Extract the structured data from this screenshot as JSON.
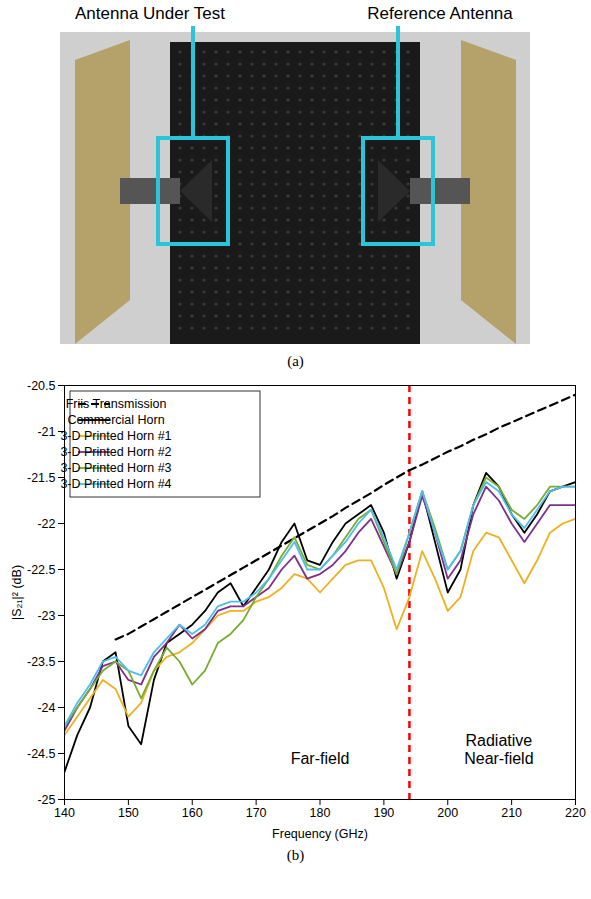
{
  "panel_a": {
    "labels": [
      "Antenna Under Test",
      "Reference Antenna"
    ],
    "caption": "(a)"
  },
  "chart_data": {
    "type": "line",
    "caption": "(b)",
    "x_label": "Frequency (GHz)",
    "y_label": "|S₂₁|² (dB)",
    "xlim": [
      140,
      220
    ],
    "xticks": [
      140,
      150,
      160,
      170,
      180,
      190,
      200,
      210,
      220
    ],
    "ylim": [
      -25,
      -20.5
    ],
    "yticks": [
      -25,
      -24.5,
      -24,
      -23.5,
      -23,
      -22.5,
      -22,
      -21.5,
      -21,
      -20.5
    ],
    "grid": false,
    "legend": "top-left",
    "vline": {
      "value": 194,
      "color": "#ff0000",
      "line_style": "dashed"
    },
    "annotations": [
      {
        "text": "Far-field",
        "x": 180,
        "y": -24.55
      },
      {
        "text": "Radiative Near-field",
        "x": 208,
        "y": -24.45
      }
    ],
    "x": [
      140,
      142,
      144,
      146,
      148,
      150,
      152,
      154,
      156,
      158,
      160,
      162,
      164,
      166,
      168,
      170,
      172,
      174,
      176,
      178,
      180,
      182,
      184,
      186,
      188,
      190,
      192,
      194,
      196,
      198,
      200,
      202,
      204,
      206,
      208,
      210,
      212,
      214,
      216,
      218,
      220
    ],
    "series": [
      {
        "name": "Friis Transmission",
        "color": "#000000",
        "line_style": "dashed",
        "values": [
          null,
          null,
          null,
          null,
          -23.26,
          -23.2,
          -23.12,
          -23.04,
          -22.96,
          -22.88,
          -22.8,
          -22.72,
          -22.64,
          -22.56,
          -22.48,
          -22.4,
          -22.32,
          -22.24,
          -22.16,
          -22.08,
          -22.0,
          -21.92,
          -21.83,
          -21.75,
          -21.67,
          -21.58,
          -21.5,
          -21.42,
          -21.36,
          -21.29,
          -21.22,
          -21.16,
          -21.09,
          -21.03,
          -20.96,
          -20.9,
          -20.84,
          -20.78,
          -20.72,
          -20.66,
          -20.6
        ]
      },
      {
        "name": "Commercial Horn",
        "color": "#000000",
        "line_style": "solid",
        "values": [
          -24.7,
          -24.3,
          -24.0,
          -23.5,
          -23.4,
          -24.2,
          -24.4,
          -23.7,
          -23.3,
          -23.2,
          -23.1,
          -22.95,
          -22.75,
          -22.65,
          -22.9,
          -22.7,
          -22.5,
          -22.2,
          -22.0,
          -22.4,
          -22.45,
          -22.2,
          -22.0,
          -21.9,
          -21.8,
          -22.1,
          -22.6,
          -22.2,
          -21.65,
          -22.2,
          -22.75,
          -22.5,
          -21.8,
          -21.45,
          -21.6,
          -21.9,
          -22.1,
          -21.9,
          -21.65,
          -21.6,
          -21.55
        ]
      },
      {
        "name": "3-D Printed Horn #1",
        "color": "#EDB120",
        "line_style": "solid",
        "values": [
          -24.3,
          -24.1,
          -23.9,
          -23.7,
          -23.8,
          -24.1,
          -23.95,
          -23.6,
          -23.45,
          -23.4,
          -23.3,
          -23.15,
          -23.0,
          -22.95,
          -22.95,
          -22.85,
          -22.8,
          -22.7,
          -22.55,
          -22.6,
          -22.75,
          -22.6,
          -22.45,
          -22.4,
          -22.4,
          -22.7,
          -23.15,
          -22.8,
          -22.3,
          -22.6,
          -22.95,
          -22.8,
          -22.3,
          -22.1,
          -22.15,
          -22.4,
          -22.65,
          -22.4,
          -22.1,
          -22.0,
          -21.95
        ]
      },
      {
        "name": "3-D Printed Horn #2",
        "color": "#7E2F8E",
        "line_style": "solid",
        "values": [
          -24.25,
          -24.0,
          -23.8,
          -23.55,
          -23.5,
          -23.7,
          -23.75,
          -23.45,
          -23.3,
          -23.1,
          -23.25,
          -23.15,
          -22.95,
          -22.9,
          -22.9,
          -22.8,
          -22.7,
          -22.5,
          -22.35,
          -22.6,
          -22.55,
          -22.45,
          -22.3,
          -22.1,
          -21.95,
          -22.25,
          -22.55,
          -22.2,
          -21.7,
          -22.1,
          -22.6,
          -22.4,
          -21.9,
          -21.6,
          -21.75,
          -22.0,
          -22.2,
          -22.0,
          -21.8,
          -21.8,
          -21.8
        ]
      },
      {
        "name": "3-D Printed Horn #3",
        "color": "#77AC30",
        "line_style": "solid",
        "values": [
          -24.2,
          -24.0,
          -23.8,
          -23.6,
          -23.5,
          -23.6,
          -23.9,
          -23.6,
          -23.35,
          -23.5,
          -23.75,
          -23.6,
          -23.3,
          -23.2,
          -23.05,
          -22.8,
          -22.6,
          -22.35,
          -22.15,
          -22.45,
          -22.5,
          -22.35,
          -22.15,
          -21.95,
          -21.85,
          -22.2,
          -22.55,
          -22.1,
          -21.65,
          -22.05,
          -22.5,
          -22.3,
          -21.8,
          -21.5,
          -21.6,
          -21.85,
          -21.95,
          -21.8,
          -21.6,
          -21.6,
          -21.6
        ]
      },
      {
        "name": "3-D Printed Horn #4",
        "color": "#4DBEEE",
        "line_style": "solid",
        "values": [
          -24.2,
          -23.95,
          -23.75,
          -23.5,
          -23.45,
          -23.6,
          -23.65,
          -23.4,
          -23.25,
          -23.1,
          -23.2,
          -23.1,
          -22.9,
          -22.85,
          -22.85,
          -22.75,
          -22.6,
          -22.4,
          -22.2,
          -22.5,
          -22.5,
          -22.35,
          -22.2,
          -22.0,
          -21.85,
          -22.15,
          -22.5,
          -22.1,
          -21.65,
          -22.1,
          -22.5,
          -22.3,
          -21.8,
          -21.55,
          -21.65,
          -21.9,
          -22.05,
          -21.85,
          -21.65,
          -21.6,
          -21.6
        ]
      }
    ]
  }
}
